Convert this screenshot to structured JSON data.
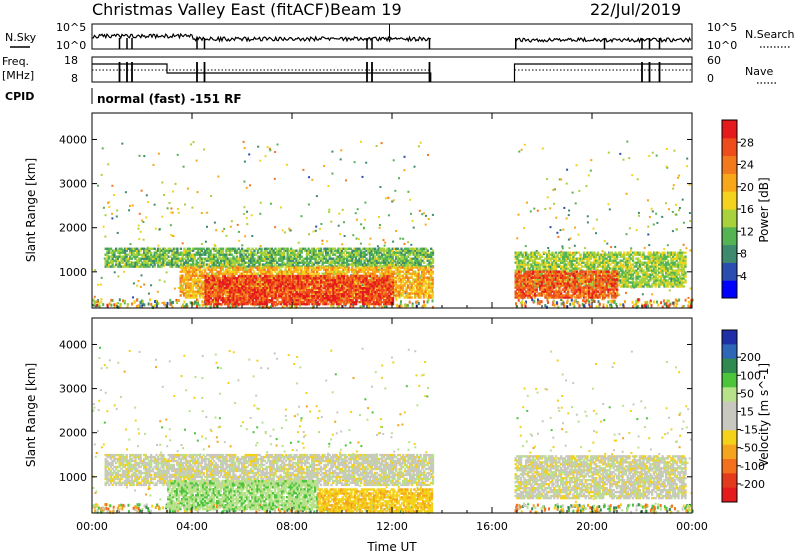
{
  "header": {
    "title": "Christmas Valley East (fitACF)",
    "beam": "Beam 19",
    "date": "22/Jul/2019"
  },
  "panels": {
    "nsky": {
      "left_label": "N.Sky",
      "right_label": "N.Search",
      "ticks_left": [
        "10^5",
        "10^0"
      ],
      "ticks_right": [
        "10^5",
        "10^0"
      ]
    },
    "freq": {
      "left_label_1": "Freq.",
      "left_label_2": "[MHz]",
      "right_label": "Nave",
      "ticks_left": [
        "18",
        "8"
      ],
      "ticks_right": [
        "60",
        "0"
      ]
    },
    "cpid": {
      "label": "CPID",
      "mode_text": "normal (fast) -151 RF"
    }
  },
  "colors": {
    "power": [
      "#0000ff",
      "#2a4db0",
      "#3d8a6e",
      "#54b454",
      "#a8d23c",
      "#f3d31d",
      "#f7a719",
      "#f3791d",
      "#ee4c1b",
      "#e41a1c"
    ],
    "velocity": [
      "#1f2fa8",
      "#2f67b8",
      "#2e8a4e",
      "#4cc43c",
      "#b8e28a",
      "#c8c8c0",
      "#c8c8c0",
      "#f4d21a",
      "#f5a51d",
      "#f3711d",
      "#e43a1c",
      "#e41a1c"
    ]
  },
  "chart_data": [
    {
      "type": "heatmap",
      "quantity": "Power",
      "ylabel": "Slant Range [km]",
      "colorbar_label": "Power [dB]",
      "colorbar_ticks": [
        "28",
        "24",
        "20",
        "16",
        "12",
        "8",
        "4"
      ],
      "colorbar_range": [
        0,
        32
      ],
      "x_ticks": [
        "00:00",
        "04:00",
        "08:00",
        "12:00",
        "16:00",
        "20:00",
        "00:00"
      ],
      "y_ticks": [
        "4000",
        "3000",
        "2000",
        "1000"
      ],
      "x_range_hours": [
        0,
        24
      ],
      "y_range_km": [
        180,
        4600
      ],
      "data_gap_hours": [
        13.6,
        16.9
      ],
      "regions": [
        {
          "t": [
            0.5,
            13.6
          ],
          "r": [
            1100,
            1550
          ],
          "level": 12
        },
        {
          "t": [
            3.5,
            13.6
          ],
          "r": [
            400,
            1100
          ],
          "level": 20
        },
        {
          "t": [
            4.5,
            12.0
          ],
          "r": [
            250,
            900
          ],
          "level": 28
        },
        {
          "t": [
            16.9,
            23.7
          ],
          "r": [
            650,
            1450
          ],
          "level": 14
        },
        {
          "t": [
            16.9,
            21.0
          ],
          "r": [
            400,
            1000
          ],
          "level": 26
        }
      ]
    },
    {
      "type": "heatmap",
      "quantity": "Velocity",
      "ylabel": "Slant Range [km]",
      "colorbar_label": "Velocity [m s^-1]",
      "colorbar_ticks": [
        "200",
        "100",
        "50",
        "15",
        "-15",
        "-50",
        "-100",
        "-200"
      ],
      "colorbar_range": [
        -250,
        250
      ],
      "x_ticks": [
        "00:00",
        "04:00",
        "08:00",
        "12:00",
        "16:00",
        "20:00",
        "00:00"
      ],
      "y_ticks": [
        "4000",
        "3000",
        "2000",
        "1000"
      ],
      "x_range_hours": [
        0,
        24
      ],
      "y_range_km": [
        180,
        4600
      ],
      "xlabel": "Time UT",
      "data_gap_hours": [
        13.6,
        16.9
      ],
      "regions": [
        {
          "t": [
            0.5,
            13.6
          ],
          "r": [
            800,
            1500
          ],
          "velocity": 0
        },
        {
          "t": [
            3.0,
            9.0
          ],
          "r": [
            250,
            900
          ],
          "velocity": 40
        },
        {
          "t": [
            9.0,
            13.6
          ],
          "r": [
            200,
            700
          ],
          "velocity": -40
        },
        {
          "t": [
            16.9,
            23.7
          ],
          "r": [
            500,
            1450
          ],
          "velocity": 0
        }
      ]
    }
  ]
}
